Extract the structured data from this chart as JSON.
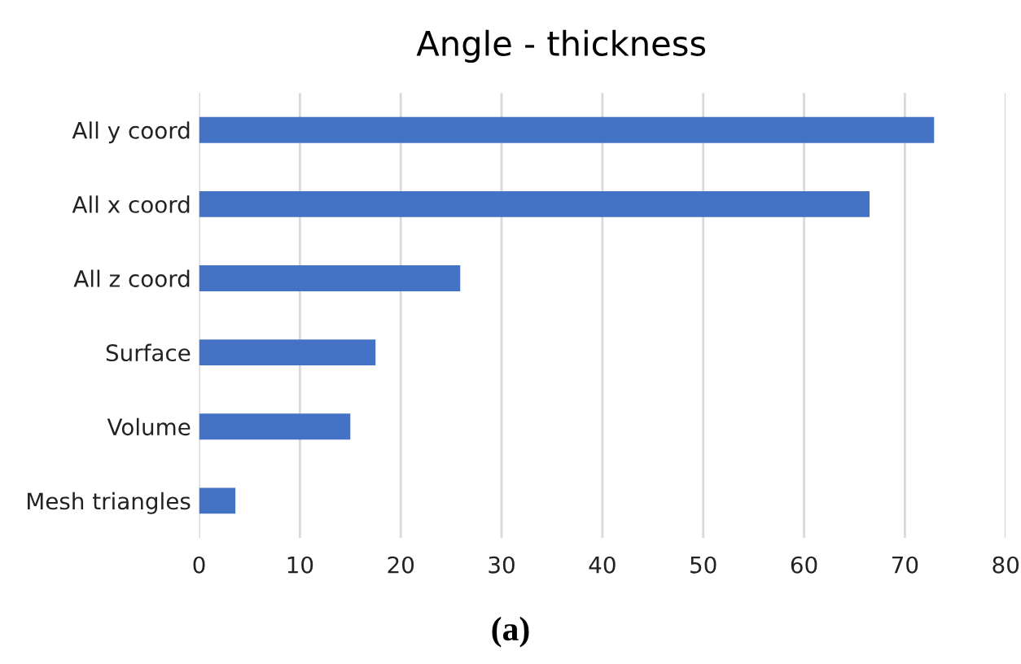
{
  "chart_data": {
    "type": "bar",
    "title": "Angle - thickness",
    "orientation": "horizontal",
    "categories": [
      "All y coord",
      "All x coord",
      "All z coord",
      "Surface",
      "Volume",
      "Mesh triangles"
    ],
    "values": [
      72.9,
      66.5,
      25.9,
      17.5,
      15.0,
      3.6
    ],
    "color": "#4472c4",
    "xlim": [
      0,
      80
    ],
    "xticks": [
      0,
      10,
      20,
      30,
      40,
      50,
      60,
      70,
      80
    ],
    "grid": "x",
    "annotations": [
      "(a)"
    ]
  }
}
